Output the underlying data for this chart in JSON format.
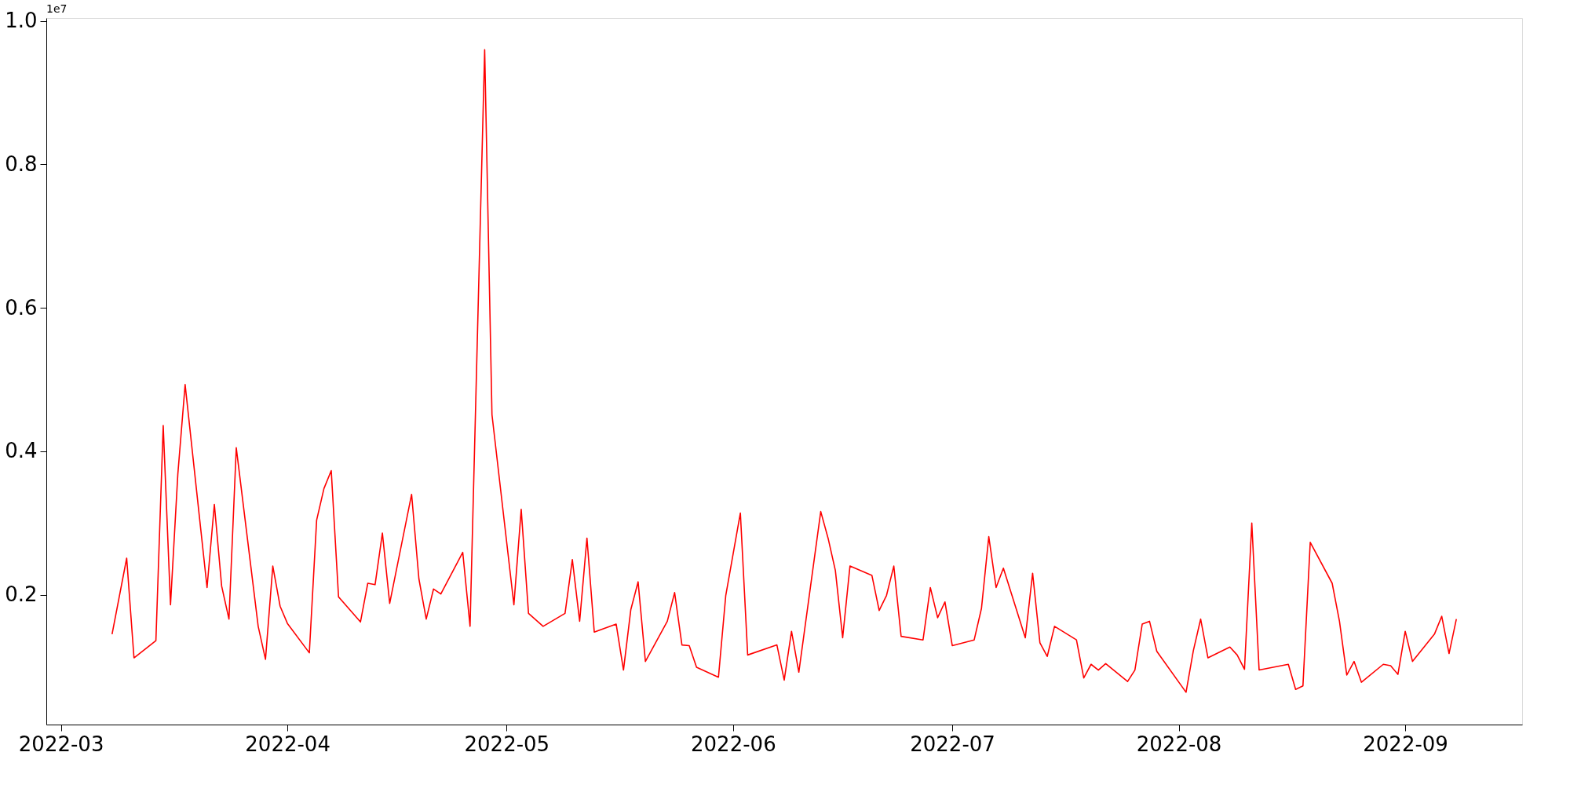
{
  "chart_data": {
    "type": "line",
    "annotations": [
      "1e7"
    ],
    "xlim": [
      "2022-02-27",
      "2022-09-17"
    ],
    "xticks": [
      "2022-03",
      "2022-04",
      "2022-05",
      "2022-06",
      "2022-07",
      "2022-08",
      "2022-09"
    ],
    "ylim": [
      0.019,
      1.004
    ],
    "yticks": [
      0.2,
      0.4,
      0.6,
      0.8,
      {
        "value": 1,
        "label": "1.0"
      }
    ],
    "grid": false,
    "marker": "none",
    "line_style": "solid",
    "series": [
      {
        "color": "#ff0000",
        "x": [
          "2022-03-08",
          "2022-03-10",
          "2022-03-11",
          "2022-03-14",
          "2022-03-15",
          "2022-03-16",
          "2022-03-17",
          "2022-03-18",
          "2022-03-21",
          "2022-03-22",
          "2022-03-23",
          "2022-03-24",
          "2022-03-25",
          "2022-03-28",
          "2022-03-29",
          "2022-03-30",
          "2022-03-31",
          "2022-04-01",
          "2022-04-04",
          "2022-04-05",
          "2022-04-06",
          "2022-04-07",
          "2022-04-08",
          "2022-04-11",
          "2022-04-12",
          "2022-04-13",
          "2022-04-14",
          "2022-04-15",
          "2022-04-18",
          "2022-04-19",
          "2022-04-20",
          "2022-04-21",
          "2022-04-22",
          "2022-04-25",
          "2022-04-26",
          "2022-04-28",
          "2022-04-29",
          "2022-05-02",
          "2022-05-03",
          "2022-05-04",
          "2022-05-06",
          "2022-05-09",
          "2022-05-10",
          "2022-05-11",
          "2022-05-12",
          "2022-05-13",
          "2022-05-16",
          "2022-05-17",
          "2022-05-18",
          "2022-05-19",
          "2022-05-20",
          "2022-05-23",
          "2022-05-24",
          "2022-05-25",
          "2022-05-26",
          "2022-05-27",
          "2022-05-30",
          "2022-05-31",
          "2022-06-02",
          "2022-06-03",
          "2022-06-07",
          "2022-06-08",
          "2022-06-09",
          "2022-06-10",
          "2022-06-13",
          "2022-06-14",
          "2022-06-15",
          "2022-06-16",
          "2022-06-17",
          "2022-06-20",
          "2022-06-21",
          "2022-06-22",
          "2022-06-23",
          "2022-06-24",
          "2022-06-27",
          "2022-06-28",
          "2022-06-29",
          "2022-06-30",
          "2022-07-01",
          "2022-07-04",
          "2022-07-05",
          "2022-07-06",
          "2022-07-07",
          "2022-07-08",
          "2022-07-11",
          "2022-07-12",
          "2022-07-13",
          "2022-07-14",
          "2022-07-15",
          "2022-07-18",
          "2022-07-19",
          "2022-07-20",
          "2022-07-21",
          "2022-07-22",
          "2022-07-25",
          "2022-07-26",
          "2022-07-27",
          "2022-07-28",
          "2022-07-29",
          "2022-08-02",
          "2022-08-03",
          "2022-08-04",
          "2022-08-05",
          "2022-08-08",
          "2022-08-09",
          "2022-08-10",
          "2022-08-11",
          "2022-08-12",
          "2022-08-16",
          "2022-08-17",
          "2022-08-18",
          "2022-08-19",
          "2022-08-22",
          "2022-08-23",
          "2022-08-24",
          "2022-08-25",
          "2022-08-26",
          "2022-08-29",
          "2022-08-30",
          "2022-08-31",
          "2022-09-01",
          "2022-09-02",
          "2022-09-05",
          "2022-09-06",
          "2022-09-07",
          "2022-09-08"
        ],
        "values": [
          0.145,
          0.251,
          0.112,
          0.136,
          0.436,
          0.186,
          0.368,
          0.493,
          0.21,
          0.326,
          0.212,
          0.166,
          0.405,
          0.156,
          0.11,
          0.24,
          0.184,
          0.16,
          0.119,
          0.304,
          0.348,
          0.373,
          0.197,
          0.162,
          0.216,
          0.214,
          0.286,
          0.188,
          0.34,
          0.222,
          0.166,
          0.208,
          0.201,
          0.259,
          0.156,
          0.96,
          0.451,
          0.186,
          0.319,
          0.174,
          0.156,
          0.174,
          0.249,
          0.163,
          0.279,
          0.148,
          0.159,
          0.095,
          0.179,
          0.218,
          0.107,
          0.163,
          0.203,
          0.13,
          0.129,
          0.099,
          0.085,
          0.199,
          0.314,
          0.116,
          0.13,
          0.081,
          0.149,
          0.092,
          0.316,
          0.279,
          0.234,
          0.14,
          0.24,
          0.227,
          0.178,
          0.199,
          0.24,
          0.142,
          0.137,
          0.21,
          0.168,
          0.19,
          0.129,
          0.137,
          0.181,
          0.281,
          0.21,
          0.237,
          0.14,
          0.23,
          0.133,
          0.114,
          0.156,
          0.137,
          0.084,
          0.103,
          0.095,
          0.104,
          0.079,
          0.095,
          0.159,
          0.163,
          0.121,
          0.064,
          0.122,
          0.166,
          0.112,
          0.127,
          0.116,
          0.096,
          0.3,
          0.095,
          0.103,
          0.068,
          0.073,
          0.273,
          0.216,
          0.163,
          0.088,
          0.107,
          0.078,
          0.103,
          0.101,
          0.089,
          0.149,
          0.107,
          0.145,
          0.17,
          0.118,
          0.166
        ]
      }
    ]
  }
}
